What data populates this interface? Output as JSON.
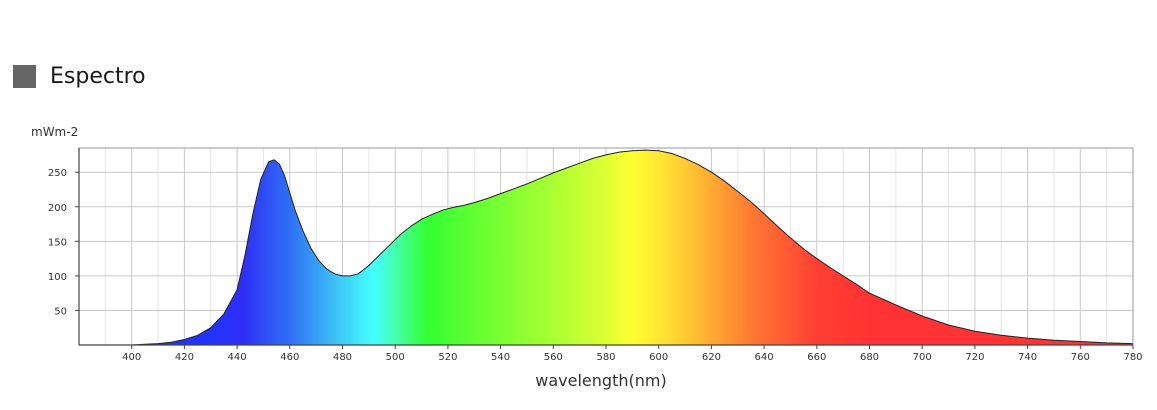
{
  "header": {
    "title": "Espectro"
  },
  "chart_data": {
    "type": "area",
    "title": "Espectro",
    "xlabel": "wavelength(nm)",
    "ylabel": "mWm-2",
    "xlim": [
      380,
      780
    ],
    "ylim": [
      0,
      285
    ],
    "x_ticks": [
      400,
      420,
      440,
      460,
      480,
      500,
      520,
      540,
      560,
      580,
      600,
      620,
      640,
      660,
      680,
      700,
      720,
      740,
      760,
      780
    ],
    "y_ticks": [
      50,
      100,
      150,
      200,
      250
    ],
    "grid": true,
    "fill": "visible-spectrum-gradient",
    "series": [
      {
        "x": [
          380,
          400,
          405,
          410,
          415,
          420,
          425,
          430,
          435,
          440,
          443,
          446,
          449,
          452,
          454,
          456,
          458,
          460,
          462,
          465,
          468,
          471,
          474,
          477,
          480,
          483,
          486,
          490,
          494,
          498,
          502,
          506,
          510,
          514,
          518,
          522,
          526,
          530,
          535,
          540,
          545,
          550,
          555,
          560,
          565,
          570,
          575,
          580,
          585,
          590,
          595,
          600,
          605,
          610,
          615,
          620,
          625,
          630,
          635,
          640,
          645,
          650,
          655,
          660,
          665,
          670,
          675,
          680,
          690,
          700,
          710,
          720,
          730,
          740,
          750,
          760,
          770,
          780
        ],
        "y": [
          0,
          0,
          1,
          2,
          4,
          8,
          14,
          25,
          45,
          80,
          130,
          190,
          240,
          265,
          268,
          262,
          245,
          220,
          195,
          165,
          140,
          122,
          110,
          103,
          100,
          100,
          103,
          115,
          130,
          145,
          160,
          172,
          182,
          189,
          195,
          199,
          202,
          206,
          212,
          219,
          226,
          233,
          241,
          249,
          256,
          263,
          270,
          275,
          279,
          281,
          282,
          281,
          277,
          270,
          261,
          250,
          237,
          222,
          207,
          190,
          172,
          155,
          139,
          125,
          112,
          100,
          88,
          75,
          58,
          42,
          29,
          20,
          14,
          10,
          7,
          5,
          3,
          2
        ]
      }
    ]
  }
}
